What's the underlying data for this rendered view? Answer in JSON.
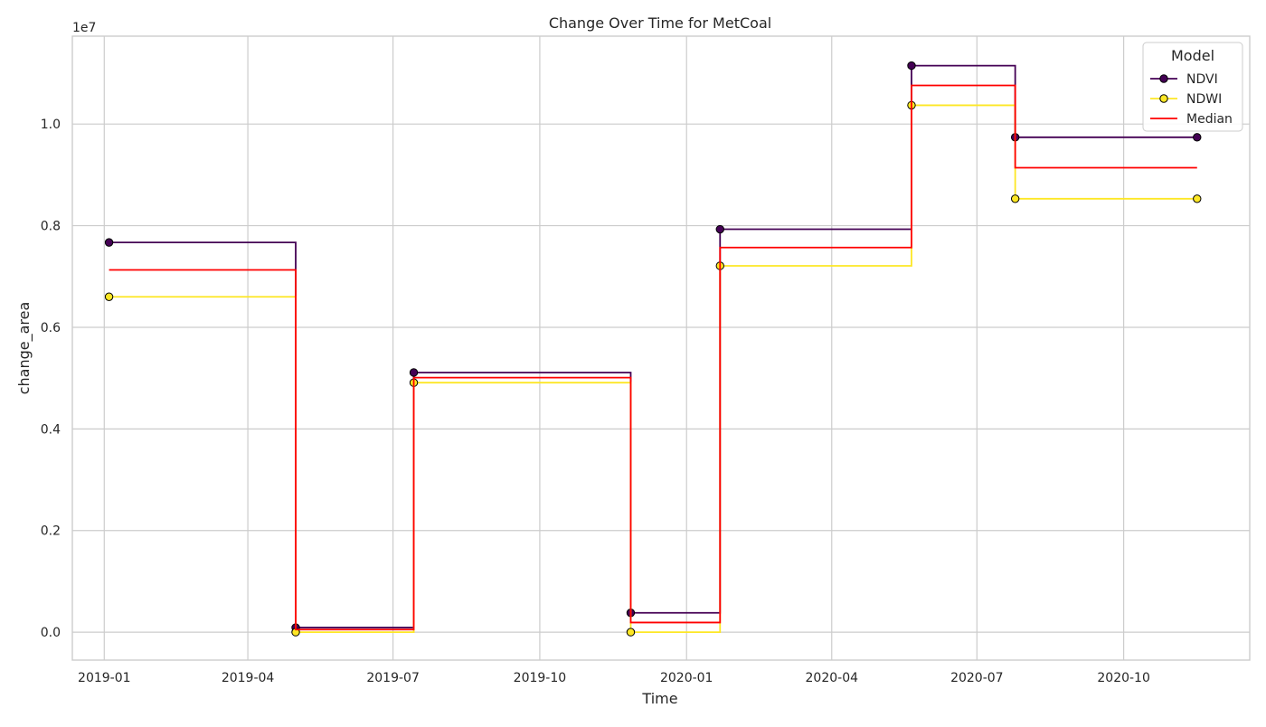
{
  "chart_data": {
    "type": "line",
    "step": true,
    "title": "Change Over Time for MetCoal",
    "xlabel": "Time",
    "ylabel": "change_area",
    "y_offset_text": "1e7",
    "y_scale": 10000000,
    "xlim": [
      "2018-12-12",
      "2020-12-19"
    ],
    "ylim": [
      -0.055,
      1.173
    ],
    "x_ticks": [
      "2019-01-01",
      "2019-04-01",
      "2019-07-01",
      "2019-10-01",
      "2020-01-01",
      "2020-04-01",
      "2020-07-01",
      "2020-10-01"
    ],
    "x_tick_labels": [
      "2019-01",
      "2019-04",
      "2019-07",
      "2019-10",
      "2020-01",
      "2020-04",
      "2020-07",
      "2020-10"
    ],
    "y_ticks": [
      0.0,
      0.2,
      0.4,
      0.6,
      0.8,
      1.0
    ],
    "y_tick_labels": [
      "0.0",
      "0.2",
      "0.4",
      "0.6",
      "0.8",
      "1.0"
    ],
    "grid": true,
    "legend": {
      "title": "Model",
      "position": "top-right"
    },
    "series": [
      {
        "name": "NDVI",
        "color": "#440154",
        "marker": "circle",
        "x": [
          "2019-01-04",
          "2019-05-01",
          "2019-07-14",
          "2019-11-27",
          "2020-01-22",
          "2020-05-21",
          "2020-07-25",
          "2020-11-16"
        ],
        "y": [
          0.767,
          0.009,
          0.511,
          0.038,
          0.793,
          1.115,
          0.974,
          0.974
        ]
      },
      {
        "name": "NDWI",
        "color": "#fde725",
        "marker": "circle",
        "x": [
          "2019-01-04",
          "2019-05-01",
          "2019-07-14",
          "2019-11-27",
          "2020-01-22",
          "2020-05-21",
          "2020-07-25",
          "2020-11-16"
        ],
        "y": [
          0.66,
          0.0,
          0.491,
          0.0,
          0.721,
          1.037,
          0.853,
          0.853
        ]
      },
      {
        "name": "Median",
        "color": "#ff0000",
        "marker": "none",
        "x": [
          "2019-01-04",
          "2019-05-01",
          "2019-07-14",
          "2019-11-27",
          "2020-01-22",
          "2020-05-21",
          "2020-07-25",
          "2020-11-16"
        ],
        "y": [
          0.713,
          0.005,
          0.501,
          0.019,
          0.757,
          1.076,
          0.914,
          0.914
        ]
      }
    ]
  }
}
